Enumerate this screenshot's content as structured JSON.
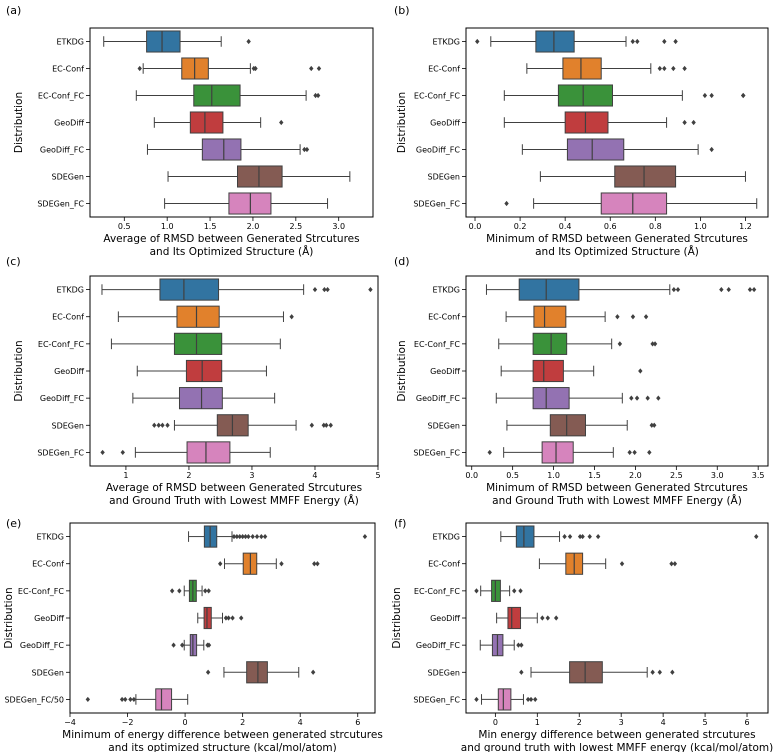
{
  "colors": {
    "ETKDG": "#3274a1",
    "EC-Conf": "#e1812c",
    "EC-Conf_FC": "#3a923a",
    "GeoDiff": "#c03d3e",
    "GeoDiff_FC": "#9372b2",
    "SDEGen": "#845b53",
    "SDEGen_FC": "#d684bd",
    "line": "#404040"
  },
  "chart_data": [
    {
      "id": "a",
      "letter": "(a)",
      "type": "box",
      "ylabel": "Distribution",
      "xlabel": [
        "Average of RMSD between Generated Strcutures",
        "and Its Optimized Structure (Å)"
      ],
      "xlim": [
        0.1,
        3.4
      ],
      "xticks": [
        0.5,
        1.0,
        1.5,
        2.0,
        2.5,
        3.0
      ],
      "tick_labels": [
        "0.5",
        "1.0",
        "1.5",
        "2.0",
        "2.5",
        "3.0"
      ],
      "series": [
        {
          "name": "ETKDG",
          "wl": 0.26,
          "q1": 0.76,
          "med": 0.94,
          "q3": 1.15,
          "wh": 1.63,
          "fliers": [
            1.95
          ]
        },
        {
          "name": "EC-Conf",
          "wl": 0.72,
          "q1": 1.17,
          "med": 1.32,
          "q3": 1.48,
          "wh": 1.97,
          "fliers": [
            0.68,
            2.01,
            2.03,
            2.68,
            2.77
          ]
        },
        {
          "name": "EC-Conf_FC",
          "wl": 0.64,
          "q1": 1.31,
          "med": 1.52,
          "q3": 1.85,
          "wh": 2.62,
          "fliers": [
            2.73,
            2.76
          ]
        },
        {
          "name": "GeoDiff",
          "wl": 0.85,
          "q1": 1.27,
          "med": 1.44,
          "q3": 1.65,
          "wh": 2.09,
          "fliers": [
            2.33
          ]
        },
        {
          "name": "GeoDiff_FC",
          "wl": 0.77,
          "q1": 1.41,
          "med": 1.66,
          "q3": 1.86,
          "wh": 2.55,
          "fliers": [
            2.6,
            2.63
          ]
        },
        {
          "name": "SDEGen",
          "wl": 1.01,
          "q1": 1.82,
          "med": 2.07,
          "q3": 2.34,
          "wh": 3.13,
          "fliers": []
        },
        {
          "name": "SDEGen_FC",
          "wl": 0.97,
          "q1": 1.72,
          "med": 1.97,
          "q3": 2.21,
          "wh": 2.87,
          "fliers": []
        }
      ]
    },
    {
      "id": "b",
      "letter": "(b)",
      "type": "box",
      "ylabel": "Distribution",
      "xlabel": [
        "Minimum of RMSD between Generated Strcutures",
        "and Its Optimized Structure (Å)"
      ],
      "xlim": [
        -0.04,
        1.3
      ],
      "xticks": [
        0.0,
        0.2,
        0.4,
        0.6,
        0.8,
        1.0,
        1.2
      ],
      "tick_labels": [
        "0.0",
        "0.2",
        "0.4",
        "0.6",
        "0.8",
        "1.0",
        "1.2"
      ],
      "series": [
        {
          "name": "ETKDG",
          "wl": 0.07,
          "q1": 0.27,
          "med": 0.35,
          "q3": 0.44,
          "wh": 0.67,
          "fliers": [
            0.01,
            0.7,
            0.72,
            0.84,
            0.89
          ]
        },
        {
          "name": "EC-Conf",
          "wl": 0.23,
          "q1": 0.39,
          "med": 0.47,
          "q3": 0.56,
          "wh": 0.78,
          "fliers": [
            0.82,
            0.84,
            0.88,
            0.93
          ]
        },
        {
          "name": "EC-Conf_FC",
          "wl": 0.13,
          "q1": 0.37,
          "med": 0.48,
          "q3": 0.61,
          "wh": 0.92,
          "fliers": [
            1.02,
            1.05,
            1.19,
            1.19
          ]
        },
        {
          "name": "GeoDiff",
          "wl": 0.13,
          "q1": 0.4,
          "med": 0.49,
          "q3": 0.59,
          "wh": 0.85,
          "fliers": [
            0.93,
            0.97
          ]
        },
        {
          "name": "GeoDiff_FC",
          "wl": 0.21,
          "q1": 0.41,
          "med": 0.52,
          "q3": 0.66,
          "wh": 0.99,
          "fliers": [
            1.05
          ]
        },
        {
          "name": "SDEGen",
          "wl": 0.29,
          "q1": 0.62,
          "med": 0.75,
          "q3": 0.89,
          "wh": 1.2,
          "fliers": []
        },
        {
          "name": "SDEGen_FC",
          "wl": 0.26,
          "q1": 0.56,
          "med": 0.7,
          "q3": 0.85,
          "wh": 1.25,
          "fliers": [
            0.14
          ]
        }
      ]
    },
    {
      "id": "c",
      "letter": "(c)",
      "type": "box",
      "ylabel": "Distribution",
      "xlabel": [
        "Average of RMSD between Generated Strcutures",
        "and Ground Truth with Lowest MMFF Energy (Å)"
      ],
      "xlim": [
        0.43,
        5.0
      ],
      "xticks": [
        1,
        2,
        3,
        4,
        5
      ],
      "tick_labels": [
        "1",
        "2",
        "3",
        "4",
        "5"
      ],
      "series": [
        {
          "name": "ETKDG",
          "wl": 0.62,
          "q1": 1.54,
          "med": 1.92,
          "q3": 2.47,
          "wh": 3.82,
          "fliers": [
            4.0,
            4.15,
            4.2,
            4.88
          ]
        },
        {
          "name": "EC-Conf",
          "wl": 0.88,
          "q1": 1.81,
          "med": 2.12,
          "q3": 2.48,
          "wh": 3.5,
          "fliers": [
            3.63
          ]
        },
        {
          "name": "EC-Conf_FC",
          "wl": 0.77,
          "q1": 1.77,
          "med": 2.12,
          "q3": 2.52,
          "wh": 3.45,
          "fliers": []
        },
        {
          "name": "GeoDiff",
          "wl": 1.18,
          "q1": 1.96,
          "med": 2.21,
          "q3": 2.52,
          "wh": 3.23,
          "fliers": []
        },
        {
          "name": "GeoDiff_FC",
          "wl": 1.11,
          "q1": 1.85,
          "med": 2.2,
          "q3": 2.53,
          "wh": 3.36,
          "fliers": []
        },
        {
          "name": "SDEGen",
          "wl": 1.77,
          "q1": 2.45,
          "med": 2.69,
          "q3": 2.94,
          "wh": 3.7,
          "fliers": [
            1.45,
            1.52,
            1.58,
            1.66,
            3.95,
            4.14,
            4.18,
            4.25
          ]
        },
        {
          "name": "SDEGen_FC",
          "wl": 1.15,
          "q1": 1.97,
          "med": 2.27,
          "q3": 2.65,
          "wh": 3.29,
          "fliers": [
            0.63,
            0.95
          ]
        }
      ]
    },
    {
      "id": "d",
      "letter": "(d)",
      "type": "box",
      "ylabel": "Distribution",
      "xlabel": [
        "Minimum of RMSD between Generated Strcutures",
        "and Ground Truth with Lowest MMFF Energy (Å)"
      ],
      "xlim": [
        -0.07,
        3.62
      ],
      "xticks": [
        0.0,
        0.5,
        1.0,
        1.5,
        2.0,
        2.5,
        3.0,
        3.5
      ],
      "tick_labels": [
        "0.0",
        "0.5",
        "1.0",
        "1.5",
        "2.0",
        "2.5",
        "3.0",
        "3.5"
      ],
      "series": [
        {
          "name": "ETKDG",
          "wl": 0.18,
          "q1": 0.58,
          "med": 0.91,
          "q3": 1.31,
          "wh": 2.42,
          "fliers": [
            2.47,
            2.52,
            3.05,
            3.14,
            3.4,
            3.45
          ]
        },
        {
          "name": "EC-Conf",
          "wl": 0.42,
          "q1": 0.76,
          "med": 0.89,
          "q3": 1.15,
          "wh": 1.63,
          "fliers": [
            1.78,
            1.97,
            2.13
          ]
        },
        {
          "name": "EC-Conf_FC",
          "wl": 0.33,
          "q1": 0.75,
          "med": 0.97,
          "q3": 1.16,
          "wh": 1.71,
          "fliers": [
            1.81,
            2.21,
            2.24
          ]
        },
        {
          "name": "GeoDiff",
          "wl": 0.36,
          "q1": 0.75,
          "med": 0.88,
          "q3": 1.12,
          "wh": 1.49,
          "fliers": [
            2.06
          ]
        },
        {
          "name": "GeoDiff_FC",
          "wl": 0.3,
          "q1": 0.75,
          "med": 0.91,
          "q3": 1.19,
          "wh": 1.84,
          "fliers": [
            1.95,
            2.02,
            2.15,
            2.28
          ]
        },
        {
          "name": "SDEGen",
          "wl": 0.43,
          "q1": 0.96,
          "med": 1.16,
          "q3": 1.39,
          "wh": 1.9,
          "fliers": [
            2.2,
            2.23
          ]
        },
        {
          "name": "SDEGen_FC",
          "wl": 0.39,
          "q1": 0.86,
          "med": 1.03,
          "q3": 1.24,
          "wh": 1.73,
          "fliers": [
            0.22,
            1.93,
            1.99,
            2.17
          ]
        }
      ]
    },
    {
      "id": "e",
      "letter": "(e)",
      "type": "box",
      "ylabel": "Distribution",
      "xlabel": [
        "Minimum of energy difference between generated strcutures",
        "and its optimized structure (kcal/mol/atom)"
      ],
      "xlim": [
        -4.0,
        6.6
      ],
      "xticks": [
        -4,
        -2,
        0,
        2,
        4,
        6
      ],
      "tick_labels": [
        "−4",
        "−2",
        "0",
        "2",
        "4",
        "6"
      ],
      "series": [
        {
          "name": "ETKDG",
          "wl": 0.12,
          "q1": 0.67,
          "med": 0.87,
          "q3": 1.1,
          "wh": 1.63,
          "fliers": [
            1.7,
            1.8,
            1.9,
            2.0,
            2.1,
            2.2,
            2.35,
            2.5,
            2.65,
            2.78,
            6.25
          ]
        },
        {
          "name": "EC-Conf",
          "wl": 1.37,
          "q1": 2.02,
          "med": 2.27,
          "q3": 2.49,
          "wh": 3.17,
          "fliers": [
            1.22,
            3.35,
            4.49,
            4.6
          ]
        },
        {
          "name": "EC-Conf_FC",
          "wl": -0.03,
          "q1": 0.15,
          "med": 0.27,
          "q3": 0.39,
          "wh": 0.59,
          "fliers": [
            -0.45,
            -0.2,
            0.7,
            0.82
          ]
        },
        {
          "name": "GeoDiff",
          "wl": 0.44,
          "q1": 0.66,
          "med": 0.76,
          "q3": 0.91,
          "wh": 1.3,
          "fliers": [
            1.42,
            1.51,
            1.65,
            1.95
          ]
        },
        {
          "name": "GeoDiff_FC",
          "wl": -0.03,
          "q1": 0.18,
          "med": 0.27,
          "q3": 0.4,
          "wh": 0.65,
          "fliers": [
            -0.4,
            -0.1,
            0.78,
            0.83
          ]
        },
        {
          "name": "SDEGen",
          "wl": 1.35,
          "q1": 2.14,
          "med": 2.53,
          "q3": 2.86,
          "wh": 3.95,
          "fliers": [
            0.8,
            4.45
          ]
        },
        {
          "name": "SDEGen_FC/50",
          "wl": -1.71,
          "q1": -1.02,
          "med": -0.82,
          "q3": -0.47,
          "wh": 0.09,
          "fliers": [
            -3.38,
            -2.19,
            -2.08,
            -1.9,
            -1.78
          ]
        }
      ]
    },
    {
      "id": "f",
      "letter": "(f)",
      "type": "box",
      "ylabel": "Distribution",
      "xlabel": [
        "Min energy difference between generated strcutures",
        "and ground truth with lowest MMFF energy (kcal/mol/atom)"
      ],
      "xlim": [
        -0.7,
        6.5
      ],
      "xticks": [
        0,
        1,
        2,
        3,
        4,
        5,
        6
      ],
      "tick_labels": [
        "0",
        "1",
        "2",
        "3",
        "4",
        "5",
        "6"
      ],
      "series": [
        {
          "name": "ETKDG",
          "wl": 0.13,
          "q1": 0.5,
          "med": 0.68,
          "q3": 0.92,
          "wh": 1.53,
          "fliers": [
            1.65,
            1.78,
            2.02,
            2.08,
            2.25,
            2.45,
            6.22
          ]
        },
        {
          "name": "EC-Conf",
          "wl": 1.05,
          "q1": 1.68,
          "med": 1.88,
          "q3": 2.08,
          "wh": 2.63,
          "fliers": [
            3.02,
            4.2,
            4.28
          ]
        },
        {
          "name": "EC-Conf_FC",
          "wl": -0.35,
          "q1": -0.09,
          "med": 0.0,
          "q3": 0.12,
          "wh": 0.34,
          "fliers": [
            -0.45,
            0.45,
            0.6
          ]
        },
        {
          "name": "GeoDiff",
          "wl": 0.03,
          "q1": 0.3,
          "med": 0.39,
          "q3": 0.6,
          "wh": 1.0,
          "fliers": [
            1.12,
            1.25,
            1.45
          ]
        },
        {
          "name": "GeoDiff_FC",
          "wl": -0.36,
          "q1": -0.07,
          "med": 0.05,
          "q3": 0.18,
          "wh": 0.45,
          "fliers": [
            0.55,
            0.62
          ]
        },
        {
          "name": "SDEGen",
          "wl": 0.85,
          "q1": 1.77,
          "med": 2.14,
          "q3": 2.55,
          "wh": 3.62,
          "fliers": [
            0.62,
            3.75,
            3.92,
            4.22
          ]
        },
        {
          "name": "SDEGen_FC",
          "wl": -0.33,
          "q1": 0.07,
          "med": 0.19,
          "q3": 0.37,
          "wh": 0.67,
          "fliers": [
            -0.45,
            0.78,
            0.85,
            0.95
          ]
        }
      ]
    }
  ]
}
